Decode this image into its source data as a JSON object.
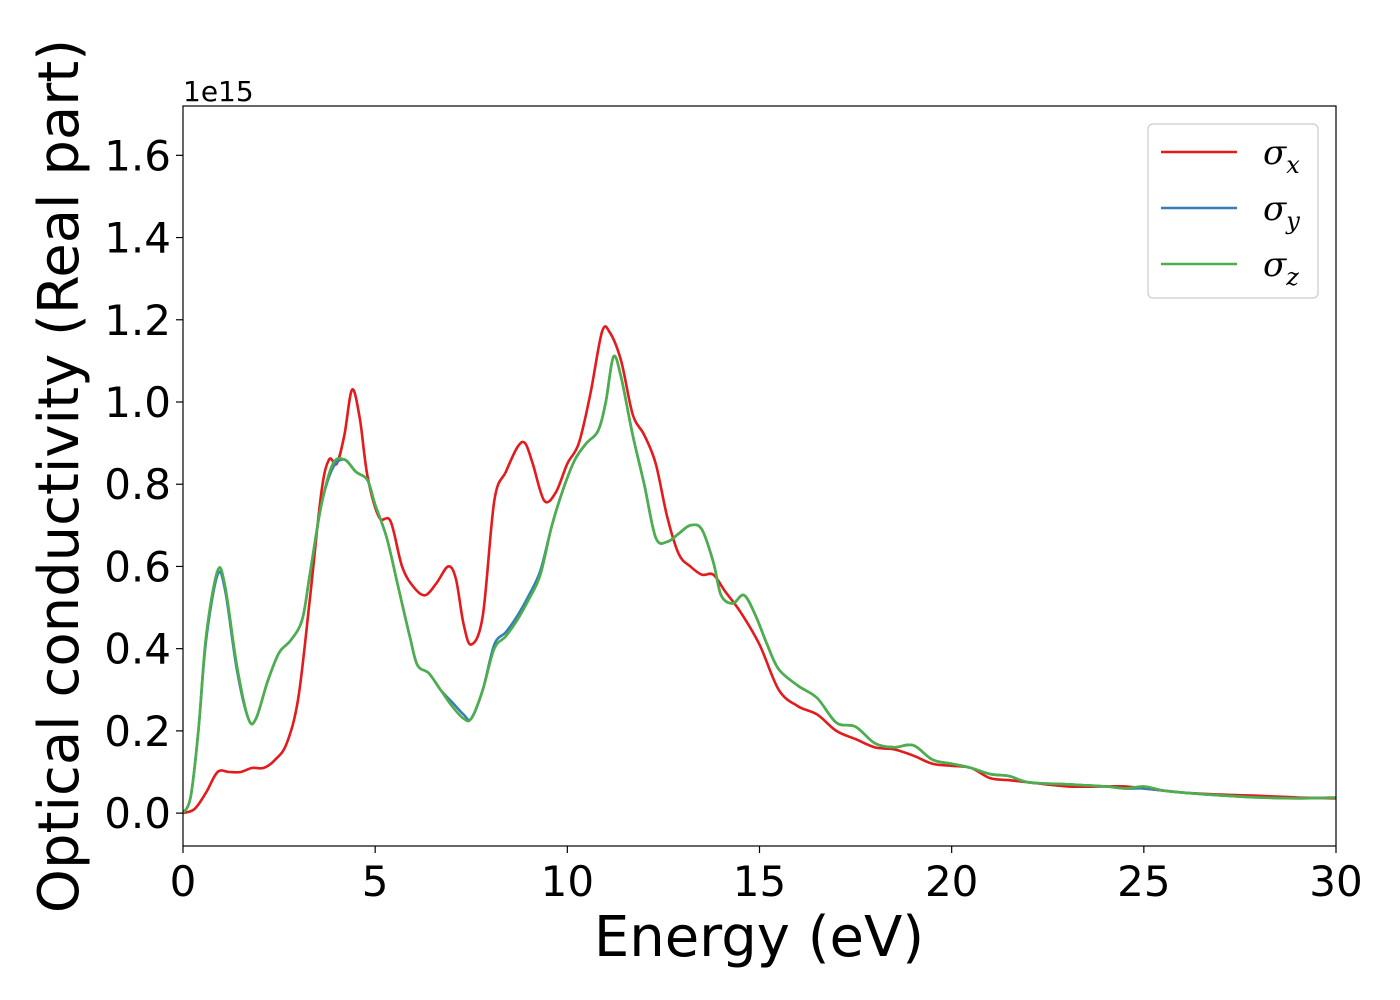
{
  "chart_data": {
    "type": "line",
    "xlabel": "Energy (eV)",
    "ylabel": "Optical conductivity (Real part)",
    "y_offset_text": "1e15",
    "xlim": [
      0,
      30
    ],
    "ylim": [
      -0.08,
      1.72
    ],
    "x_ticks": [
      0,
      5,
      10,
      15,
      20,
      25,
      30
    ],
    "x_tick_labels": [
      "0",
      "5",
      "10",
      "15",
      "20",
      "25",
      "30"
    ],
    "y_ticks": [
      0.0,
      0.2,
      0.4,
      0.6,
      0.8,
      1.0,
      1.2,
      1.4,
      1.6
    ],
    "y_tick_labels": [
      "0.0",
      "0.2",
      "0.4",
      "0.6",
      "0.8",
      "1.0",
      "1.2",
      "1.4",
      "1.6"
    ],
    "grid": false,
    "legend_position": "top-right",
    "series": [
      {
        "name": "σx",
        "base": "σ",
        "sub": "x",
        "color": "#e41a1c",
        "points": [
          [
            0,
            0
          ],
          [
            0.3,
            0.01
          ],
          [
            0.6,
            0.05
          ],
          [
            0.9,
            0.1
          ],
          [
            1.2,
            0.1
          ],
          [
            1.5,
            0.1
          ],
          [
            1.8,
            0.11
          ],
          [
            2.1,
            0.11
          ],
          [
            2.4,
            0.13
          ],
          [
            2.7,
            0.17
          ],
          [
            3.0,
            0.28
          ],
          [
            3.3,
            0.52
          ],
          [
            3.6,
            0.78
          ],
          [
            3.8,
            0.86
          ],
          [
            4.0,
            0.85
          ],
          [
            4.2,
            0.92
          ],
          [
            4.4,
            1.03
          ],
          [
            4.6,
            0.96
          ],
          [
            4.8,
            0.82
          ],
          [
            5.1,
            0.72
          ],
          [
            5.4,
            0.71
          ],
          [
            5.7,
            0.6
          ],
          [
            6.0,
            0.55
          ],
          [
            6.3,
            0.53
          ],
          [
            6.6,
            0.56
          ],
          [
            6.9,
            0.6
          ],
          [
            7.1,
            0.57
          ],
          [
            7.3,
            0.46
          ],
          [
            7.5,
            0.41
          ],
          [
            7.8,
            0.48
          ],
          [
            8.1,
            0.76
          ],
          [
            8.4,
            0.83
          ],
          [
            8.7,
            0.89
          ],
          [
            8.9,
            0.9
          ],
          [
            9.1,
            0.85
          ],
          [
            9.4,
            0.76
          ],
          [
            9.7,
            0.78
          ],
          [
            10.0,
            0.85
          ],
          [
            10.3,
            0.9
          ],
          [
            10.6,
            1.02
          ],
          [
            10.9,
            1.17
          ],
          [
            11.1,
            1.17
          ],
          [
            11.4,
            1.1
          ],
          [
            11.7,
            0.97
          ],
          [
            12.0,
            0.92
          ],
          [
            12.3,
            0.85
          ],
          [
            12.6,
            0.72
          ],
          [
            12.9,
            0.63
          ],
          [
            13.2,
            0.6
          ],
          [
            13.5,
            0.58
          ],
          [
            13.8,
            0.58
          ],
          [
            14.1,
            0.54
          ],
          [
            14.5,
            0.49
          ],
          [
            15.0,
            0.41
          ],
          [
            15.5,
            0.3
          ],
          [
            16.0,
            0.26
          ],
          [
            16.5,
            0.24
          ],
          [
            17.0,
            0.2
          ],
          [
            17.5,
            0.18
          ],
          [
            18.0,
            0.16
          ],
          [
            18.5,
            0.155
          ],
          [
            19.0,
            0.14
          ],
          [
            19.5,
            0.12
          ],
          [
            20.0,
            0.115
          ],
          [
            20.5,
            0.11
          ],
          [
            21.0,
            0.085
          ],
          [
            21.5,
            0.08
          ],
          [
            22.0,
            0.075
          ],
          [
            23.0,
            0.065
          ],
          [
            24.0,
            0.065
          ],
          [
            24.5,
            0.065
          ],
          [
            25.0,
            0.06
          ],
          [
            26.0,
            0.05
          ],
          [
            27.0,
            0.045
          ],
          [
            28.0,
            0.042
          ],
          [
            29.0,
            0.038
          ],
          [
            30.0,
            0.036
          ]
        ]
      },
      {
        "name": "σy",
        "base": "σ",
        "sub": "y",
        "color": "#377eb8",
        "points": [
          [
            0,
            0
          ],
          [
            0.2,
            0.04
          ],
          [
            0.4,
            0.2
          ],
          [
            0.6,
            0.42
          ],
          [
            0.9,
            0.58
          ],
          [
            1.1,
            0.54
          ],
          [
            1.4,
            0.35
          ],
          [
            1.7,
            0.23
          ],
          [
            1.9,
            0.23
          ],
          [
            2.2,
            0.32
          ],
          [
            2.5,
            0.39
          ],
          [
            2.8,
            0.42
          ],
          [
            3.1,
            0.47
          ],
          [
            3.3,
            0.58
          ],
          [
            3.6,
            0.75
          ],
          [
            3.9,
            0.84
          ],
          [
            4.2,
            0.86
          ],
          [
            4.5,
            0.83
          ],
          [
            4.8,
            0.81
          ],
          [
            5.0,
            0.75
          ],
          [
            5.3,
            0.67
          ],
          [
            5.6,
            0.55
          ],
          [
            5.9,
            0.43
          ],
          [
            6.1,
            0.36
          ],
          [
            6.4,
            0.34
          ],
          [
            6.7,
            0.3
          ],
          [
            7.0,
            0.27
          ],
          [
            7.3,
            0.24
          ],
          [
            7.5,
            0.23
          ],
          [
            7.8,
            0.3
          ],
          [
            8.1,
            0.41
          ],
          [
            8.4,
            0.44
          ],
          [
            8.7,
            0.48
          ],
          [
            9.0,
            0.53
          ],
          [
            9.3,
            0.59
          ],
          [
            9.6,
            0.7
          ],
          [
            9.9,
            0.79
          ],
          [
            10.2,
            0.86
          ],
          [
            10.5,
            0.9
          ],
          [
            10.8,
            0.93
          ],
          [
            11.0,
            1.0
          ],
          [
            11.2,
            1.11
          ],
          [
            11.4,
            1.06
          ],
          [
            11.7,
            0.92
          ],
          [
            12.0,
            0.8
          ],
          [
            12.3,
            0.67
          ],
          [
            12.6,
            0.66
          ],
          [
            12.9,
            0.68
          ],
          [
            13.2,
            0.7
          ],
          [
            13.5,
            0.69
          ],
          [
            13.8,
            0.61
          ],
          [
            14.0,
            0.53
          ],
          [
            14.3,
            0.51
          ],
          [
            14.6,
            0.53
          ],
          [
            14.9,
            0.48
          ],
          [
            15.2,
            0.41
          ],
          [
            15.5,
            0.35
          ],
          [
            16.0,
            0.31
          ],
          [
            16.5,
            0.28
          ],
          [
            17.0,
            0.22
          ],
          [
            17.5,
            0.21
          ],
          [
            18.0,
            0.17
          ],
          [
            18.5,
            0.16
          ],
          [
            19.0,
            0.165
          ],
          [
            19.5,
            0.13
          ],
          [
            20.0,
            0.12
          ],
          [
            20.5,
            0.11
          ],
          [
            21.0,
            0.095
          ],
          [
            21.5,
            0.09
          ],
          [
            22.0,
            0.075
          ],
          [
            23.0,
            0.07
          ],
          [
            24.0,
            0.065
          ],
          [
            24.5,
            0.06
          ],
          [
            25.0,
            0.06
          ],
          [
            25.5,
            0.055
          ],
          [
            26.0,
            0.05
          ],
          [
            27.0,
            0.043
          ],
          [
            28.0,
            0.038
          ],
          [
            29.0,
            0.036
          ],
          [
            30.0,
            0.038
          ]
        ]
      },
      {
        "name": "σz",
        "base": "σ",
        "sub": "z",
        "color": "#4daf4a",
        "points": [
          [
            0,
            0
          ],
          [
            0.2,
            0.04
          ],
          [
            0.4,
            0.2
          ],
          [
            0.6,
            0.43
          ],
          [
            0.9,
            0.59
          ],
          [
            1.1,
            0.55
          ],
          [
            1.4,
            0.36
          ],
          [
            1.7,
            0.23
          ],
          [
            1.9,
            0.23
          ],
          [
            2.2,
            0.32
          ],
          [
            2.5,
            0.39
          ],
          [
            2.8,
            0.42
          ],
          [
            3.1,
            0.47
          ],
          [
            3.3,
            0.58
          ],
          [
            3.6,
            0.75
          ],
          [
            3.9,
            0.85
          ],
          [
            4.2,
            0.86
          ],
          [
            4.5,
            0.83
          ],
          [
            4.8,
            0.81
          ],
          [
            5.0,
            0.75
          ],
          [
            5.3,
            0.67
          ],
          [
            5.6,
            0.55
          ],
          [
            5.9,
            0.43
          ],
          [
            6.1,
            0.36
          ],
          [
            6.4,
            0.34
          ],
          [
            6.7,
            0.3
          ],
          [
            7.0,
            0.26
          ],
          [
            7.3,
            0.23
          ],
          [
            7.5,
            0.23
          ],
          [
            7.8,
            0.3
          ],
          [
            8.1,
            0.4
          ],
          [
            8.4,
            0.43
          ],
          [
            8.7,
            0.47
          ],
          [
            9.0,
            0.52
          ],
          [
            9.3,
            0.58
          ],
          [
            9.6,
            0.7
          ],
          [
            9.9,
            0.79
          ],
          [
            10.2,
            0.86
          ],
          [
            10.5,
            0.9
          ],
          [
            10.8,
            0.93
          ],
          [
            11.0,
            1.0
          ],
          [
            11.2,
            1.11
          ],
          [
            11.4,
            1.06
          ],
          [
            11.7,
            0.92
          ],
          [
            12.0,
            0.8
          ],
          [
            12.3,
            0.67
          ],
          [
            12.6,
            0.66
          ],
          [
            12.9,
            0.68
          ],
          [
            13.2,
            0.7
          ],
          [
            13.5,
            0.69
          ],
          [
            13.8,
            0.61
          ],
          [
            14.0,
            0.53
          ],
          [
            14.3,
            0.51
          ],
          [
            14.6,
            0.53
          ],
          [
            14.9,
            0.48
          ],
          [
            15.2,
            0.41
          ],
          [
            15.5,
            0.35
          ],
          [
            16.0,
            0.31
          ],
          [
            16.5,
            0.28
          ],
          [
            17.0,
            0.22
          ],
          [
            17.5,
            0.21
          ],
          [
            18.0,
            0.17
          ],
          [
            18.5,
            0.16
          ],
          [
            19.0,
            0.165
          ],
          [
            19.5,
            0.13
          ],
          [
            20.0,
            0.12
          ],
          [
            20.5,
            0.11
          ],
          [
            21.0,
            0.095
          ],
          [
            21.5,
            0.09
          ],
          [
            22.0,
            0.075
          ],
          [
            23.0,
            0.07
          ],
          [
            24.0,
            0.065
          ],
          [
            24.5,
            0.06
          ],
          [
            25.0,
            0.065
          ],
          [
            25.5,
            0.055
          ],
          [
            26.0,
            0.05
          ],
          [
            27.0,
            0.043
          ],
          [
            28.0,
            0.038
          ],
          [
            29.0,
            0.036
          ],
          [
            30.0,
            0.038
          ]
        ]
      }
    ]
  }
}
